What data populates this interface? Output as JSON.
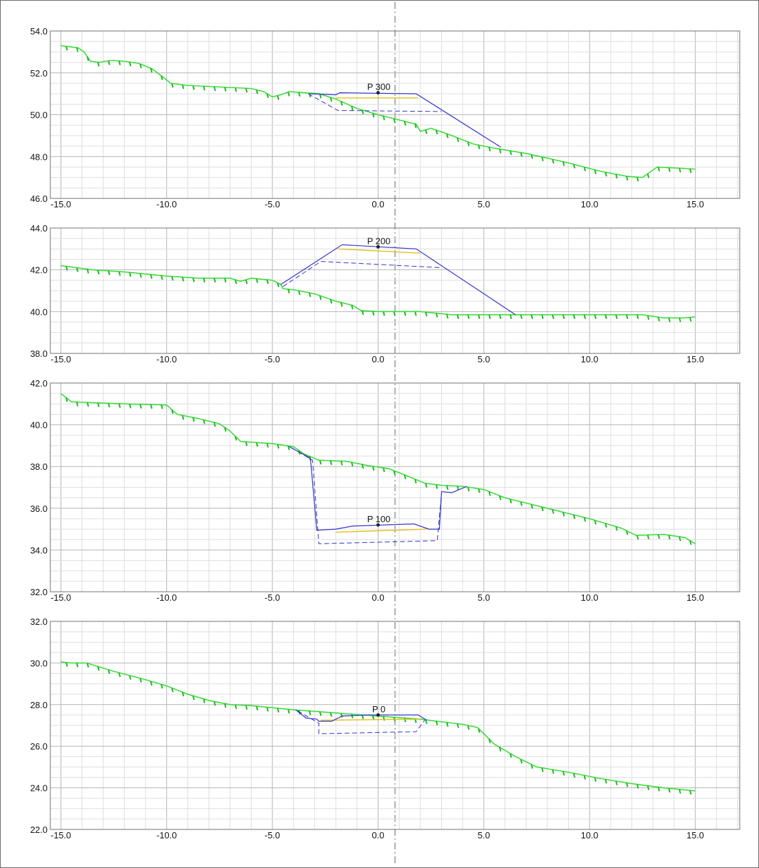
{
  "colors": {
    "ground": "#3ddc3d",
    "ground_hatch": "#1fb81f",
    "design": "#3030c8",
    "layer": "#e0bf1a",
    "grid_major": "#b4b4b4",
    "grid_minor": "#dedede",
    "axis_line": "#707070",
    "centerline": "#606060",
    "text": "#111111"
  },
  "chart_data": [
    {
      "type": "line",
      "label": "P 300",
      "x_ticks": [
        "-15.0",
        "-10.0",
        "-5.0",
        "0.0",
        "5.0",
        "10.0",
        "15.0"
      ],
      "y_ticks": [
        "54.0",
        "52.0",
        "50.0",
        "48.0",
        "46.0"
      ],
      "xlim": [
        -15,
        15
      ],
      "ylim": [
        46,
        54
      ],
      "marker": [
        0.0,
        51.05
      ],
      "ground": [
        [
          -15,
          53.3
        ],
        [
          -14.2,
          53.2
        ],
        [
          -13.9,
          53.0
        ],
        [
          -13.6,
          52.55
        ],
        [
          -13.2,
          52.5
        ],
        [
          -12.6,
          52.6
        ],
        [
          -12.0,
          52.55
        ],
        [
          -11.3,
          52.45
        ],
        [
          -10.7,
          52.2
        ],
        [
          -10.3,
          51.9
        ],
        [
          -9.8,
          51.5
        ],
        [
          -9.0,
          51.4
        ],
        [
          -7.0,
          51.3
        ],
        [
          -6.0,
          51.25
        ],
        [
          -5.4,
          51.1
        ],
        [
          -5.0,
          50.85
        ],
        [
          -4.6,
          50.95
        ],
        [
          -4.2,
          51.1
        ],
        [
          -3.5,
          51.05
        ],
        [
          -2.8,
          51.0
        ],
        [
          -2.0,
          50.75
        ],
        [
          -1.0,
          50.3
        ],
        [
          0.0,
          50.0
        ],
        [
          1.0,
          49.75
        ],
        [
          1.8,
          49.55
        ],
        [
          2.0,
          49.2
        ],
        [
          2.5,
          49.35
        ],
        [
          3.5,
          49.0
        ],
        [
          4.5,
          48.6
        ],
        [
          5.5,
          48.4
        ],
        [
          7.0,
          48.15
        ],
        [
          9.0,
          47.7
        ],
        [
          10.5,
          47.3
        ],
        [
          11.8,
          47.05
        ],
        [
          12.5,
          47.0
        ],
        [
          13.2,
          47.5
        ],
        [
          15,
          47.4
        ]
      ],
      "design": [
        [
          -3.2,
          51.0
        ],
        [
          -2.0,
          50.95
        ],
        [
          -1.8,
          51.05
        ],
        [
          1.8,
          51.0
        ],
        [
          5.8,
          48.45
        ]
      ],
      "subgrade": [
        [
          -3.3,
          51.0
        ],
        [
          -1.9,
          50.2
        ],
        [
          3.0,
          50.15
        ]
      ],
      "layer": [
        [
          -2.0,
          50.8
        ],
        [
          1.9,
          50.8
        ]
      ]
    },
    {
      "type": "line",
      "label": "P 200",
      "x_ticks": [
        "-15.0",
        "-10.0",
        "-5.0",
        "0.0",
        "5.0",
        "10.0",
        "15.0"
      ],
      "y_ticks": [
        "44.0",
        "42.0",
        "40.0",
        "38.0"
      ],
      "xlim": [
        -15,
        15
      ],
      "ylim": [
        38,
        44
      ],
      "marker": [
        0.0,
        43.1
      ],
      "ground": [
        [
          -15,
          42.2
        ],
        [
          -13.5,
          42.0
        ],
        [
          -12.0,
          41.9
        ],
        [
          -10.0,
          41.7
        ],
        [
          -8.5,
          41.6
        ],
        [
          -7.0,
          41.6
        ],
        [
          -6.5,
          41.45
        ],
        [
          -6.0,
          41.6
        ],
        [
          -5.0,
          41.5
        ],
        [
          -4.6,
          41.3
        ],
        [
          -4.5,
          41.1
        ],
        [
          -4.0,
          41.05
        ],
        [
          -3.0,
          40.85
        ],
        [
          -2.0,
          40.5
        ],
        [
          -1.2,
          40.3
        ],
        [
          -0.8,
          40.05
        ],
        [
          0.0,
          40.0
        ],
        [
          2.0,
          40.0
        ],
        [
          3.5,
          39.85
        ],
        [
          5.0,
          39.85
        ],
        [
          6.5,
          39.85
        ],
        [
          10.0,
          39.85
        ],
        [
          12.5,
          39.85
        ],
        [
          13.5,
          39.7
        ],
        [
          14.5,
          39.7
        ],
        [
          15,
          39.75
        ]
      ],
      "design": [
        [
          -4.6,
          41.3
        ],
        [
          -1.7,
          43.2
        ],
        [
          1.8,
          43.0
        ],
        [
          6.5,
          39.85
        ]
      ],
      "subgrade": [
        [
          -4.5,
          41.2
        ],
        [
          -2.7,
          42.4
        ],
        [
          3.0,
          42.1
        ]
      ],
      "layer": [
        [
          -1.9,
          43.0
        ],
        [
          2.0,
          42.8
        ]
      ]
    },
    {
      "type": "line",
      "label": "P 100",
      "x_ticks": [
        "-15.0",
        "-10.0",
        "-5.0",
        "0.0",
        "5.0",
        "10.0",
        "15.0"
      ],
      "y_ticks": [
        "42.0",
        "40.0",
        "38.0",
        "36.0",
        "34.0",
        "32.0"
      ],
      "xlim": [
        -15,
        15
      ],
      "ylim": [
        32,
        42
      ],
      "marker": [
        0.0,
        35.2
      ],
      "ground": [
        [
          -15,
          41.5
        ],
        [
          -14.5,
          41.1
        ],
        [
          -12.0,
          41.0
        ],
        [
          -10.0,
          40.95
        ],
        [
          -9.5,
          40.5
        ],
        [
          -8.5,
          40.3
        ],
        [
          -7.5,
          40.05
        ],
        [
          -7.0,
          39.7
        ],
        [
          -6.5,
          39.2
        ],
        [
          -5.0,
          39.1
        ],
        [
          -4.0,
          38.95
        ],
        [
          -3.5,
          38.6
        ],
        [
          -2.8,
          38.3
        ],
        [
          -1.5,
          38.25
        ],
        [
          -0.5,
          38.05
        ],
        [
          0.5,
          37.9
        ],
        [
          1.5,
          37.5
        ],
        [
          2.2,
          37.2
        ],
        [
          3.0,
          37.1
        ],
        [
          4.0,
          37.05
        ],
        [
          5.0,
          36.9
        ],
        [
          6.0,
          36.5
        ],
        [
          8.0,
          36.0
        ],
        [
          10.0,
          35.5
        ],
        [
          11.5,
          35.05
        ],
        [
          12.2,
          34.7
        ],
        [
          13.5,
          34.75
        ],
        [
          14.5,
          34.6
        ],
        [
          15,
          34.3
        ]
      ],
      "design": [
        [
          -4.2,
          38.95
        ],
        [
          -3.2,
          38.4
        ],
        [
          -2.9,
          34.95
        ],
        [
          -2.0,
          35.0
        ],
        [
          -1.2,
          35.15
        ],
        [
          1.7,
          35.25
        ],
        [
          2.4,
          35.0
        ],
        [
          2.9,
          35.0
        ],
        [
          3.0,
          36.8
        ],
        [
          3.5,
          36.75
        ],
        [
          4.2,
          37.05
        ]
      ],
      "subgrade": [
        [
          -4.1,
          38.9
        ],
        [
          -3.1,
          38.3
        ],
        [
          -2.8,
          34.3
        ],
        [
          2.8,
          34.45
        ],
        [
          3.0,
          36.7
        ]
      ],
      "layer": [
        [
          -2.0,
          34.85
        ],
        [
          2.3,
          35.0
        ]
      ]
    },
    {
      "type": "line",
      "label": "P 0",
      "x_ticks": [
        "-15.0",
        "-10.0",
        "-5.0",
        "0.0",
        "5.0",
        "10.0",
        "15.0"
      ],
      "y_ticks": [
        "32.0",
        "30.0",
        "28.0",
        "26.0",
        "24.0",
        "22.0"
      ],
      "xlim": [
        -15,
        15
      ],
      "ylim": [
        22,
        32
      ],
      "marker": [
        0.0,
        27.5
      ],
      "ground": [
        [
          -15,
          30.05
        ],
        [
          -14.5,
          30.0
        ],
        [
          -13.8,
          30.0
        ],
        [
          -12.5,
          29.6
        ],
        [
          -11.0,
          29.2
        ],
        [
          -10.0,
          28.9
        ],
        [
          -9.0,
          28.5
        ],
        [
          -8.0,
          28.2
        ],
        [
          -7.0,
          28.0
        ],
        [
          -6.0,
          27.95
        ],
        [
          -5.0,
          27.85
        ],
        [
          -4.0,
          27.75
        ],
        [
          -2.0,
          27.6
        ],
        [
          0.0,
          27.45
        ],
        [
          2.0,
          27.3
        ],
        [
          4.0,
          27.05
        ],
        [
          4.7,
          26.9
        ],
        [
          5.0,
          26.6
        ],
        [
          5.5,
          26.1
        ],
        [
          6.5,
          25.5
        ],
        [
          7.5,
          25.0
        ],
        [
          9.0,
          24.75
        ],
        [
          10.5,
          24.45
        ],
        [
          12.0,
          24.2
        ],
        [
          13.5,
          24.0
        ],
        [
          15,
          23.85
        ]
      ],
      "design": [
        [
          -3.9,
          27.75
        ],
        [
          -3.4,
          27.35
        ],
        [
          -2.9,
          27.3
        ],
        [
          -2.8,
          27.2
        ],
        [
          -2.2,
          27.2
        ],
        [
          -1.7,
          27.45
        ],
        [
          -0.5,
          27.5
        ],
        [
          1.9,
          27.5
        ],
        [
          2.3,
          27.25
        ]
      ],
      "subgrade": [
        [
          -3.8,
          27.7
        ],
        [
          -2.8,
          27.1
        ],
        [
          -2.8,
          26.6
        ],
        [
          1.8,
          26.7
        ],
        [
          2.2,
          27.25
        ]
      ],
      "layer": [
        [
          -2.7,
          27.25
        ],
        [
          2.0,
          27.3
        ]
      ]
    }
  ]
}
